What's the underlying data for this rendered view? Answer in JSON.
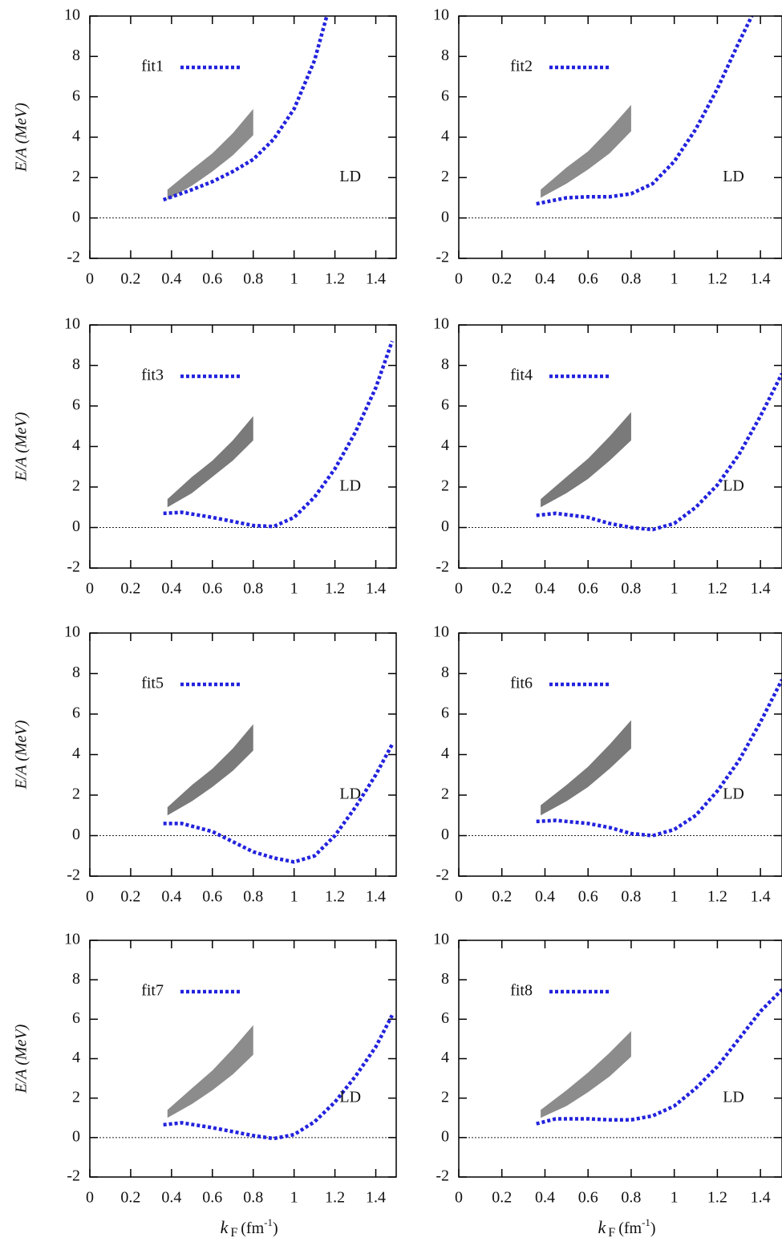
{
  "chart_data": [
    {
      "type": "line",
      "ylabel": "E/A (MeV)",
      "annotation": "LD",
      "xlim": [
        0,
        1.5
      ],
      "ylim": [
        -2,
        10
      ],
      "xticks": [
        0,
        0.2,
        0.4,
        0.6,
        0.8,
        1,
        1.2,
        1.4
      ],
      "yticks": [
        -2,
        0,
        2,
        4,
        6,
        8,
        10
      ],
      "zero_line": true,
      "band": {
        "color": "#8c8c8c",
        "x": [
          0.38,
          0.5,
          0.6,
          0.7,
          0.8
        ],
        "lower": [
          0.9,
          1.6,
          2.3,
          3.1,
          4.1
        ],
        "upper": [
          1.4,
          2.4,
          3.2,
          4.2,
          5.4
        ]
      },
      "series": [
        {
          "name": "fit1",
          "color": "#2222dd",
          "x": [
            0.36,
            0.5,
            0.6,
            0.7,
            0.8,
            0.9,
            1.0,
            1.1,
            1.16
          ],
          "values": [
            0.9,
            1.4,
            1.8,
            2.3,
            2.9,
            3.9,
            5.4,
            7.8,
            10
          ]
        }
      ]
    },
    {
      "type": "line",
      "annotation": "LD",
      "xlim": [
        0,
        1.5
      ],
      "ylim": [
        -2,
        10
      ],
      "xticks": [
        0,
        0.2,
        0.4,
        0.6,
        0.8,
        1,
        1.2,
        1.4
      ],
      "yticks": [
        -2,
        0,
        2,
        4,
        6,
        8,
        10
      ],
      "zero_line": true,
      "band": {
        "color": "#8c8c8c",
        "x": [
          0.38,
          0.5,
          0.6,
          0.7,
          0.8
        ],
        "lower": [
          1.0,
          1.7,
          2.4,
          3.2,
          4.3
        ],
        "upper": [
          1.4,
          2.5,
          3.3,
          4.4,
          5.6
        ]
      },
      "series": [
        {
          "name": "fit2",
          "color": "#2222dd",
          "x": [
            0.36,
            0.5,
            0.6,
            0.7,
            0.8,
            0.9,
            1.0,
            1.1,
            1.2,
            1.3,
            1.36
          ],
          "values": [
            0.7,
            1.0,
            1.05,
            1.05,
            1.2,
            1.7,
            2.8,
            4.4,
            6.4,
            8.7,
            10
          ]
        }
      ]
    },
    {
      "type": "line",
      "ylabel": "E/A (MeV)",
      "annotation": "LD",
      "xlim": [
        0,
        1.5
      ],
      "ylim": [
        -2,
        10
      ],
      "xticks": [
        0,
        0.2,
        0.4,
        0.6,
        0.8,
        1,
        1.2,
        1.4
      ],
      "yticks": [
        -2,
        0,
        2,
        4,
        6,
        8,
        10
      ],
      "zero_line": true,
      "band": {
        "color": "#7a7a7a",
        "x": [
          0.38,
          0.5,
          0.6,
          0.7,
          0.8
        ],
        "lower": [
          1.0,
          1.7,
          2.5,
          3.3,
          4.3
        ],
        "upper": [
          1.4,
          2.5,
          3.3,
          4.3,
          5.5
        ]
      },
      "series": [
        {
          "name": "fit3",
          "color": "#2222dd",
          "x": [
            0.36,
            0.45,
            0.6,
            0.7,
            0.8,
            0.9,
            1.0,
            1.1,
            1.2,
            1.3,
            1.4,
            1.48
          ],
          "values": [
            0.7,
            0.75,
            0.5,
            0.3,
            0.1,
            0.05,
            0.5,
            1.5,
            2.9,
            4.7,
            6.9,
            9.2
          ]
        }
      ]
    },
    {
      "type": "line",
      "annotation": "LD",
      "xlim": [
        0,
        1.5
      ],
      "ylim": [
        -2,
        10
      ],
      "xticks": [
        0,
        0.2,
        0.4,
        0.6,
        0.8,
        1,
        1.2,
        1.4
      ],
      "yticks": [
        -2,
        0,
        2,
        4,
        6,
        8,
        10
      ],
      "zero_line": true,
      "band": {
        "color": "#7a7a7a",
        "x": [
          0.38,
          0.5,
          0.6,
          0.7,
          0.8
        ],
        "lower": [
          1.0,
          1.7,
          2.4,
          3.3,
          4.3
        ],
        "upper": [
          1.4,
          2.5,
          3.4,
          4.5,
          5.7
        ]
      },
      "series": [
        {
          "name": "fit4",
          "color": "#2222dd",
          "x": [
            0.36,
            0.45,
            0.6,
            0.7,
            0.8,
            0.9,
            1.0,
            1.1,
            1.2,
            1.3,
            1.4,
            1.5
          ],
          "values": [
            0.6,
            0.7,
            0.5,
            0.2,
            0,
            -0.1,
            0.2,
            1.0,
            2.1,
            3.6,
            5.5,
            7.6
          ]
        }
      ]
    },
    {
      "type": "line",
      "ylabel": "E/A (MeV)",
      "annotation": "LD",
      "xlim": [
        0,
        1.5
      ],
      "ylim": [
        -2,
        10
      ],
      "xticks": [
        0,
        0.2,
        0.4,
        0.6,
        0.8,
        1,
        1.2,
        1.4
      ],
      "yticks": [
        -2,
        0,
        2,
        4,
        6,
        8,
        10
      ],
      "zero_line": true,
      "band": {
        "color": "#7a7a7a",
        "x": [
          0.38,
          0.5,
          0.6,
          0.7,
          0.8
        ],
        "lower": [
          1.0,
          1.7,
          2.4,
          3.2,
          4.2
        ],
        "upper": [
          1.4,
          2.5,
          3.3,
          4.3,
          5.5
        ]
      },
      "series": [
        {
          "name": "fit5",
          "color": "#2222dd",
          "x": [
            0.36,
            0.45,
            0.6,
            0.7,
            0.8,
            0.9,
            1.0,
            1.1,
            1.2,
            1.3,
            1.4,
            1.48
          ],
          "values": [
            0.6,
            0.6,
            0.2,
            -0.3,
            -0.8,
            -1.1,
            -1.3,
            -1.0,
            0.0,
            1.4,
            3.0,
            4.5
          ]
        }
      ]
    },
    {
      "type": "line",
      "annotation": "LD",
      "xlim": [
        0,
        1.5
      ],
      "ylim": [
        -2,
        10
      ],
      "xticks": [
        0,
        0.2,
        0.4,
        0.6,
        0.8,
        1,
        1.2,
        1.4
      ],
      "yticks": [
        -2,
        0,
        2,
        4,
        6,
        8,
        10
      ],
      "zero_line": true,
      "band": {
        "color": "#7a7a7a",
        "x": [
          0.38,
          0.5,
          0.6,
          0.7,
          0.8
        ],
        "lower": [
          1.0,
          1.7,
          2.4,
          3.3,
          4.3
        ],
        "upper": [
          1.5,
          2.5,
          3.4,
          4.5,
          5.7
        ]
      },
      "series": [
        {
          "name": "fit6",
          "color": "#2222dd",
          "x": [
            0.36,
            0.45,
            0.6,
            0.7,
            0.8,
            0.9,
            1.0,
            1.1,
            1.2,
            1.3,
            1.4,
            1.5
          ],
          "values": [
            0.7,
            0.75,
            0.6,
            0.4,
            0.1,
            0,
            0.3,
            1.0,
            2.2,
            3.7,
            5.6,
            7.7
          ]
        }
      ]
    },
    {
      "type": "line",
      "ylabel": "E/A (MeV)",
      "xlabel": [
        "k",
        "F",
        "(fm",
        "-1",
        ")"
      ],
      "annotation": "LD",
      "xlim": [
        0,
        1.5
      ],
      "ylim": [
        -2,
        10
      ],
      "xticks": [
        0,
        0.2,
        0.4,
        0.6,
        0.8,
        1,
        1.2,
        1.4
      ],
      "yticks": [
        -2,
        0,
        2,
        4,
        6,
        8,
        10
      ],
      "zero_line": true,
      "band": {
        "color": "#8c8c8c",
        "x": [
          0.38,
          0.5,
          0.6,
          0.7,
          0.8
        ],
        "lower": [
          1.0,
          1.7,
          2.4,
          3.2,
          4.2
        ],
        "upper": [
          1.4,
          2.5,
          3.4,
          4.5,
          5.7
        ]
      },
      "series": [
        {
          "name": "fit7",
          "color": "#2222dd",
          "x": [
            0.36,
            0.45,
            0.6,
            0.7,
            0.8,
            0.9,
            1.0,
            1.1,
            1.2,
            1.3,
            1.4,
            1.48
          ],
          "values": [
            0.65,
            0.75,
            0.5,
            0.3,
            0.1,
            -0.05,
            0.15,
            0.8,
            1.8,
            3.1,
            4.6,
            6.2
          ]
        }
      ]
    },
    {
      "type": "line",
      "xlabel": [
        "k",
        "F",
        "(fm",
        "-1",
        ")"
      ],
      "annotation": "LD",
      "xlim": [
        0,
        1.5
      ],
      "ylim": [
        -2,
        10
      ],
      "xticks": [
        0,
        0.2,
        0.4,
        0.6,
        0.8,
        1,
        1.2,
        1.4
      ],
      "yticks": [
        -2,
        0,
        2,
        4,
        6,
        8,
        10
      ],
      "zero_line": true,
      "band": {
        "color": "#8c8c8c",
        "x": [
          0.38,
          0.5,
          0.6,
          0.7,
          0.8
        ],
        "lower": [
          1.0,
          1.6,
          2.3,
          3.1,
          4.1
        ],
        "upper": [
          1.4,
          2.4,
          3.3,
          4.3,
          5.4
        ]
      },
      "series": [
        {
          "name": "fit8",
          "color": "#2222dd",
          "x": [
            0.36,
            0.45,
            0.6,
            0.7,
            0.8,
            0.9,
            1.0,
            1.1,
            1.2,
            1.3,
            1.4,
            1.5
          ],
          "values": [
            0.7,
            0.95,
            0.95,
            0.9,
            0.9,
            1.1,
            1.6,
            2.5,
            3.6,
            5.0,
            6.4,
            7.5
          ]
        }
      ]
    }
  ]
}
